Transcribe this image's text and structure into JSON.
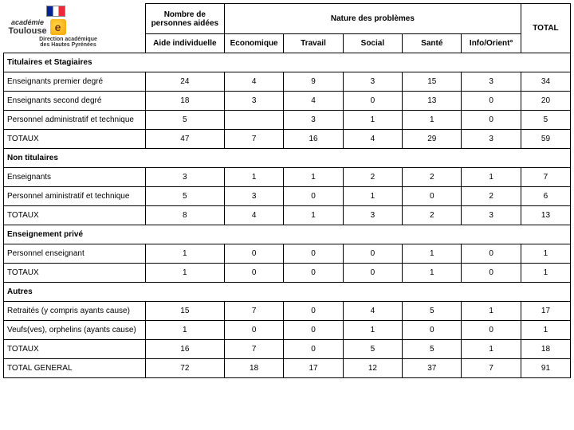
{
  "logo": {
    "academie": "académie",
    "toulouse": "Toulouse",
    "sub1": "Direction académique",
    "sub2": "des Hautes Pyrénées"
  },
  "headers": {
    "aide": "Nombre de personnes aidées",
    "aide_sub": "Aide individuelle",
    "nature": "Nature des problèmes",
    "nat": {
      "eco": "Economique",
      "travail": "Travail",
      "social": "Social",
      "sante": "Santé",
      "info": "Info/Orient°"
    },
    "total": "TOTAL"
  },
  "sections": {
    "s1": "Titulaires et Stagiaires",
    "s2": "Non titulaires",
    "s3": "Enseignement privé",
    "s4": "Autres"
  },
  "rows": {
    "r1": {
      "label": "Enseignants premier degré",
      "aide": "24",
      "eco": "4",
      "tra": "9",
      "soc": "3",
      "san": "15",
      "inf": "3",
      "tot": "34"
    },
    "r2": {
      "label": "Enseignants second degré",
      "aide": "18",
      "eco": "3",
      "tra": "4",
      "soc": "0",
      "san": "13",
      "inf": "0",
      "tot": "20"
    },
    "r3": {
      "label": "Personnel administratif et technique",
      "aide": "5",
      "eco": "",
      "tra": "3",
      "soc": "1",
      "san": "1",
      "inf": "0",
      "tot": "5"
    },
    "r4": {
      "label": "TOTAUX",
      "aide": "47",
      "eco": "7",
      "tra": "16",
      "soc": "4",
      "san": "29",
      "inf": "3",
      "tot": "59"
    },
    "r5": {
      "label": "Enseignants",
      "aide": "3",
      "eco": "1",
      "tra": "1",
      "soc": "2",
      "san": "2",
      "inf": "1",
      "tot": "7"
    },
    "r6": {
      "label": "Personnel aministratif et technique",
      "aide": "5",
      "eco": "3",
      "tra": "0",
      "soc": "1",
      "san": "0",
      "inf": "2",
      "tot": "6"
    },
    "r7": {
      "label": "TOTAUX",
      "aide": "8",
      "eco": "4",
      "tra": "1",
      "soc": "3",
      "san": "2",
      "inf": "3",
      "tot": "13"
    },
    "r8": {
      "label": "Personnel enseignant",
      "aide": "1",
      "eco": "0",
      "tra": "0",
      "soc": "0",
      "san": "1",
      "inf": "0",
      "tot": "1"
    },
    "r9": {
      "label": "TOTAUX",
      "aide": "1",
      "eco": "0",
      "tra": "0",
      "soc": "0",
      "san": "1",
      "inf": "0",
      "tot": "1"
    },
    "r10": {
      "label": "Retraités (y compris ayants cause)",
      "aide": "15",
      "eco": "7",
      "tra": "0",
      "soc": "4",
      "san": "5",
      "inf": "1",
      "tot": "17"
    },
    "r11": {
      "label": "Veufs(ves), orphelins (ayants cause)",
      "aide": "1",
      "eco": "0",
      "tra": "0",
      "soc": "1",
      "san": "0",
      "inf": "0",
      "tot": "1"
    },
    "r12": {
      "label": "TOTAUX",
      "aide": "16",
      "eco": "7",
      "tra": "0",
      "soc": "5",
      "san": "5",
      "inf": "1",
      "tot": "18"
    },
    "r13": {
      "label": "TOTAL GENERAL",
      "aide": "72",
      "eco": "18",
      "tra": "17",
      "soc": "12",
      "san": "37",
      "inf": "7",
      "tot": "91"
    }
  }
}
